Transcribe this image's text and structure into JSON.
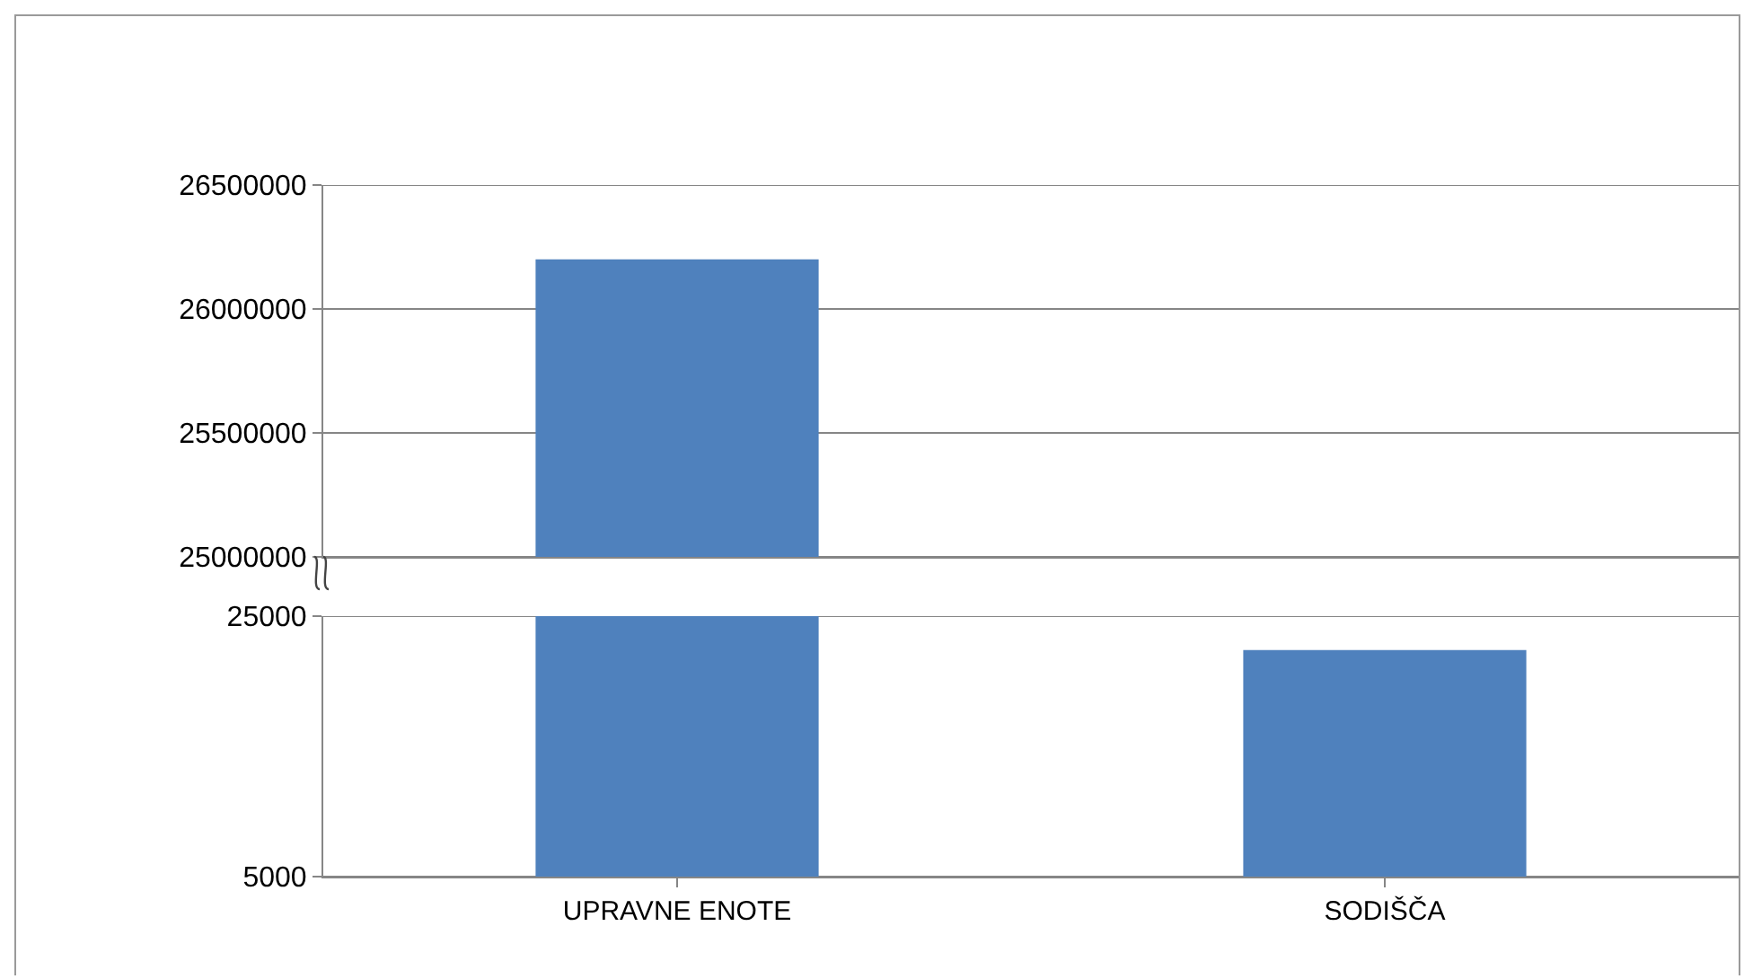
{
  "chart_data": [
    {
      "type": "bar",
      "categories": [
        null,
        null
      ],
      "values": [
        26200000,
        null
      ],
      "color": "#4f81bd",
      "ylim": [
        25000000,
        26500000
      ],
      "yticks": [
        25000000,
        25500000,
        26000000,
        26500000
      ],
      "grid": "y",
      "tick_labels": "y"
    },
    {
      "type": "bar",
      "categories": [
        "UPRAVNE ENOTE",
        "SODIŠČA"
      ],
      "values": [
        25000,
        22400
      ],
      "color": "#4f81bd",
      "ylim": [
        5000,
        25000
      ],
      "yticks": [
        5000,
        25000
      ],
      "grid": "y"
    }
  ]
}
